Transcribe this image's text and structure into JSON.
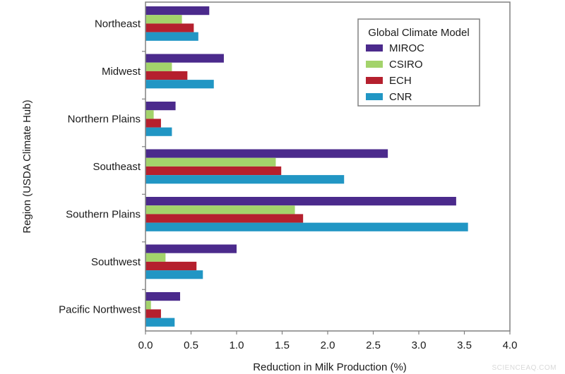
{
  "chart_data": {
    "type": "bar",
    "orientation": "horizontal",
    "title": "",
    "xlabel": "Reduction in Milk Production (%)",
    "ylabel": "Region (USDA Climate Hub)",
    "xlim": [
      0,
      4.0
    ],
    "xticks": [
      "0.0",
      "0.5",
      "1.0",
      "1.5",
      "2.0",
      "2.5",
      "3.0",
      "3.5",
      "4.0"
    ],
    "grid": false,
    "categories": [
      "Northeast",
      "Midwest",
      "Northern Plains",
      "Southeast",
      "Southern Plains",
      "Southwest",
      "Pacific Northwest"
    ],
    "series": [
      {
        "name": "MIROC",
        "color": "#4b2a8c",
        "values": [
          0.7,
          0.86,
          0.33,
          2.66,
          3.41,
          1.0,
          0.38
        ]
      },
      {
        "name": "CSIRO",
        "color": "#a3d36b",
        "values": [
          0.4,
          0.29,
          0.09,
          1.43,
          1.64,
          0.22,
          0.06
        ]
      },
      {
        "name": "ECH",
        "color": "#b5202e",
        "values": [
          0.53,
          0.46,
          0.17,
          1.49,
          1.73,
          0.56,
          0.17
        ]
      },
      {
        "name": "CNR",
        "color": "#2196c4",
        "values": [
          0.58,
          0.75,
          0.29,
          2.18,
          3.54,
          0.63,
          0.32
        ]
      }
    ],
    "legend": {
      "title": "Global Climate Model",
      "position": "top-right"
    }
  },
  "watermark": "SCIENCEAQ.COM"
}
